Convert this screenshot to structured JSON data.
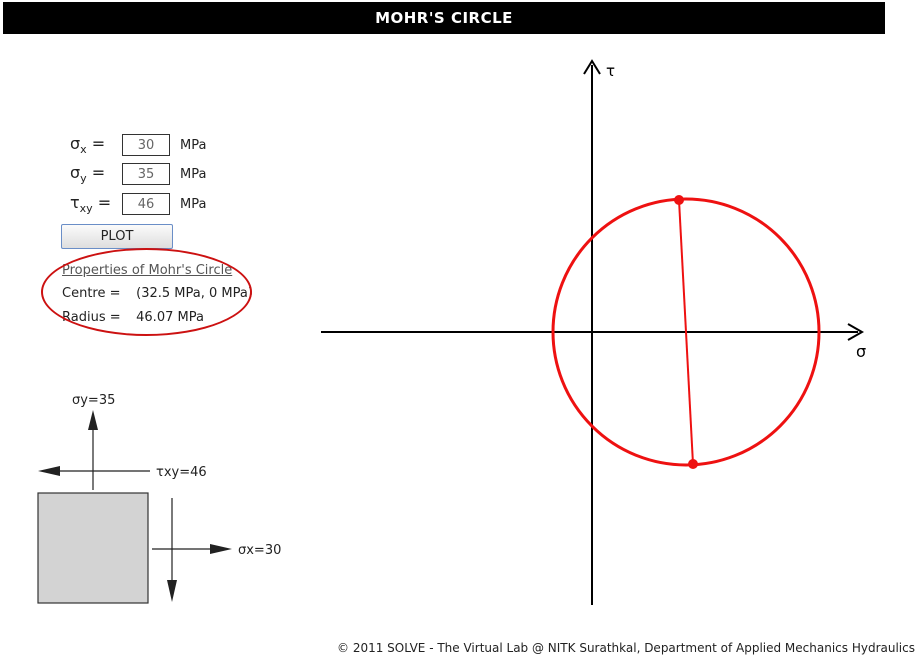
{
  "header": {
    "title": "MOHR'S CIRCLE"
  },
  "inputs": [
    {
      "symbol": "σ",
      "subscript": "x",
      "equals": "=",
      "value": "30",
      "unit": "MPa"
    },
    {
      "symbol": "σ",
      "subscript": "y",
      "equals": "=",
      "value": "35",
      "unit": "MPa"
    },
    {
      "symbol": "τ",
      "subscript": "xy",
      "equals": "=",
      "value": "46",
      "unit": "MPa"
    }
  ],
  "plot_button": {
    "label": "PLOT"
  },
  "properties": {
    "title": "Properties of Mohr's Circle",
    "centre_label": "Centre =",
    "centre_value": "(32.5 MPa, 0 MPa)",
    "radius_label": "Radius =",
    "radius_value": "46.07 MPa"
  },
  "element_diagram": {
    "sigma_y_label": "σy=35",
    "tau_xy_label": "τxy=46",
    "sigma_x_label": "σx=30",
    "fill_color": "#d3d3d3"
  },
  "mohr_plot": {
    "tau_axis_label": "τ",
    "sigma_axis_label": "σ",
    "circle_color": "#ee1111",
    "axis_color": "#000000"
  },
  "footer": {
    "text": "© 2011 SOLVE - The Virtual Lab @ NITK Surathkal, Department of Applied Mechanics Hydraulics"
  }
}
